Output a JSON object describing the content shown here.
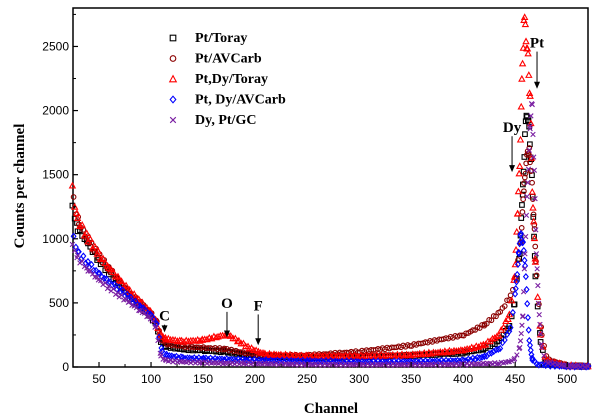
{
  "chart_data": {
    "type": "scatter",
    "xlabel": "Channel",
    "ylabel": "Counts per channel",
    "xlim": [
      25,
      520
    ],
    "ylim": [
      0,
      2800
    ],
    "xticks": [
      50,
      100,
      150,
      200,
      250,
      300,
      350,
      400,
      450,
      500
    ],
    "yticks": [
      0,
      500,
      1000,
      1500,
      2000,
      2500
    ],
    "grid": false,
    "legend_position": "top-left",
    "series": [
      {
        "name": "Pt/Toray",
        "color": "#000000",
        "marker": "square",
        "points": [
          [
            25,
            1250
          ],
          [
            30,
            1080
          ],
          [
            40,
            960
          ],
          [
            50,
            840
          ],
          [
            60,
            740
          ],
          [
            70,
            650
          ],
          [
            80,
            560
          ],
          [
            90,
            480
          ],
          [
            100,
            400
          ],
          [
            105,
            340
          ],
          [
            110,
            200
          ],
          [
            115,
            160
          ],
          [
            130,
            140
          ],
          [
            150,
            130
          ],
          [
            170,
            120
          ],
          [
            190,
            100
          ],
          [
            210,
            85
          ],
          [
            250,
            75
          ],
          [
            300,
            80
          ],
          [
            350,
            90
          ],
          [
            400,
            110
          ],
          [
            420,
            140
          ],
          [
            435,
            200
          ],
          [
            445,
            320
          ],
          [
            450,
            500
          ],
          [
            455,
            900
          ],
          [
            458,
            1400
          ],
          [
            460,
            1800
          ],
          [
            462,
            2000
          ],
          [
            464,
            1850
          ],
          [
            466,
            1600
          ],
          [
            468,
            1200
          ],
          [
            470,
            700
          ],
          [
            475,
            200
          ],
          [
            480,
            40
          ],
          [
            500,
            10
          ],
          [
            520,
            5
          ]
        ]
      },
      {
        "name": "Pt/AVCarb",
        "color": "#8b0000",
        "marker": "circle",
        "points": [
          [
            25,
            1300
          ],
          [
            30,
            1120
          ],
          [
            40,
            980
          ],
          [
            50,
            860
          ],
          [
            60,
            760
          ],
          [
            70,
            660
          ],
          [
            80,
            570
          ],
          [
            90,
            490
          ],
          [
            100,
            410
          ],
          [
            105,
            350
          ],
          [
            110,
            210
          ],
          [
            115,
            180
          ],
          [
            130,
            160
          ],
          [
            150,
            150
          ],
          [
            170,
            140
          ],
          [
            190,
            110
          ],
          [
            210,
            90
          ],
          [
            250,
            90
          ],
          [
            300,
            120
          ],
          [
            350,
            170
          ],
          [
            400,
            250
          ],
          [
            420,
            330
          ],
          [
            435,
            430
          ],
          [
            445,
            550
          ],
          [
            450,
            700
          ],
          [
            455,
            1000
          ],
          [
            458,
            1400
          ],
          [
            460,
            1600
          ],
          [
            463,
            1700
          ],
          [
            465,
            1500
          ],
          [
            468,
            1100
          ],
          [
            470,
            700
          ],
          [
            475,
            250
          ],
          [
            480,
            60
          ],
          [
            500,
            10
          ],
          [
            520,
            5
          ]
        ]
      },
      {
        "name": "Pt,Dy/Toray",
        "color": "#ff0000",
        "marker": "triangle",
        "points": [
          [
            25,
            1380
          ],
          [
            30,
            1150
          ],
          [
            40,
            1000
          ],
          [
            50,
            880
          ],
          [
            60,
            780
          ],
          [
            70,
            680
          ],
          [
            80,
            590
          ],
          [
            90,
            510
          ],
          [
            100,
            430
          ],
          [
            105,
            360
          ],
          [
            110,
            250
          ],
          [
            115,
            220
          ],
          [
            130,
            200
          ],
          [
            150,
            210
          ],
          [
            165,
            240
          ],
          [
            175,
            250
          ],
          [
            185,
            200
          ],
          [
            195,
            150
          ],
          [
            210,
            100
          ],
          [
            250,
            85
          ],
          [
            300,
            85
          ],
          [
            350,
            95
          ],
          [
            400,
            130
          ],
          [
            420,
            170
          ],
          [
            435,
            250
          ],
          [
            445,
            400
          ],
          [
            450,
            700
          ],
          [
            453,
            1200
          ],
          [
            455,
            1600
          ],
          [
            457,
            2200
          ],
          [
            459,
            2700
          ],
          [
            461,
            2600
          ],
          [
            463,
            2400
          ],
          [
            465,
            2100
          ],
          [
            467,
            1400
          ],
          [
            470,
            800
          ],
          [
            475,
            250
          ],
          [
            480,
            50
          ],
          [
            500,
            10
          ],
          [
            520,
            5
          ]
        ]
      },
      {
        "name": "Pt, Dy/AVCarb",
        "color": "#0000ff",
        "marker": "diamond",
        "points": [
          [
            25,
            1000
          ],
          [
            30,
            880
          ],
          [
            40,
            800
          ],
          [
            50,
            720
          ],
          [
            60,
            660
          ],
          [
            70,
            600
          ],
          [
            80,
            530
          ],
          [
            90,
            470
          ],
          [
            100,
            400
          ],
          [
            105,
            330
          ],
          [
            110,
            120
          ],
          [
            115,
            90
          ],
          [
            130,
            70
          ],
          [
            150,
            65
          ],
          [
            170,
            60
          ],
          [
            190,
            55
          ],
          [
            210,
            50
          ],
          [
            250,
            45
          ],
          [
            300,
            40
          ],
          [
            350,
            40
          ],
          [
            400,
            50
          ],
          [
            420,
            80
          ],
          [
            435,
            150
          ],
          [
            445,
            300
          ],
          [
            450,
            600
          ],
          [
            453,
            900
          ],
          [
            455,
            1050
          ],
          [
            457,
            950
          ],
          [
            459,
            800
          ],
          [
            461,
            500
          ],
          [
            463,
            200
          ],
          [
            466,
            60
          ],
          [
            470,
            20
          ],
          [
            500,
            5
          ],
          [
            520,
            3
          ]
        ]
      },
      {
        "name": "Dy, Pt/GC",
        "color": "#7a1fa2",
        "marker": "cross",
        "points": [
          [
            25,
            950
          ],
          [
            30,
            850
          ],
          [
            40,
            760
          ],
          [
            50,
            680
          ],
          [
            60,
            620
          ],
          [
            70,
            560
          ],
          [
            80,
            500
          ],
          [
            90,
            440
          ],
          [
            100,
            380
          ],
          [
            105,
            310
          ],
          [
            110,
            80
          ],
          [
            115,
            50
          ],
          [
            130,
            40
          ],
          [
            150,
            35
          ],
          [
            170,
            30
          ],
          [
            190,
            28
          ],
          [
            210,
            25
          ],
          [
            250,
            20
          ],
          [
            300,
            18
          ],
          [
            350,
            18
          ],
          [
            400,
            20
          ],
          [
            420,
            25
          ],
          [
            435,
            30
          ],
          [
            445,
            40
          ],
          [
            450,
            60
          ],
          [
            455,
            150
          ],
          [
            458,
            400
          ],
          [
            460,
            900
          ],
          [
            462,
            1300
          ],
          [
            465,
            1900
          ],
          [
            467,
            2050
          ],
          [
            469,
            1500
          ],
          [
            471,
            900
          ],
          [
            473,
            500
          ],
          [
            476,
            150
          ],
          [
            480,
            40
          ],
          [
            500,
            10
          ],
          [
            520,
            5
          ]
        ]
      }
    ],
    "annotations": [
      {
        "label": "C",
        "x": 113,
        "y_from": 330,
        "y_to": 270
      },
      {
        "label": "O",
        "x": 173,
        "y_from": 430,
        "y_to": 230
      },
      {
        "label": "F",
        "x": 203,
        "y_from": 410,
        "y_to": 170
      },
      {
        "label": "Dy",
        "x": 447,
        "y_from": 1800,
        "y_to": 1520
      },
      {
        "label": "Pt",
        "x": 471,
        "y_from": 2460,
        "y_to": 2170
      }
    ]
  }
}
